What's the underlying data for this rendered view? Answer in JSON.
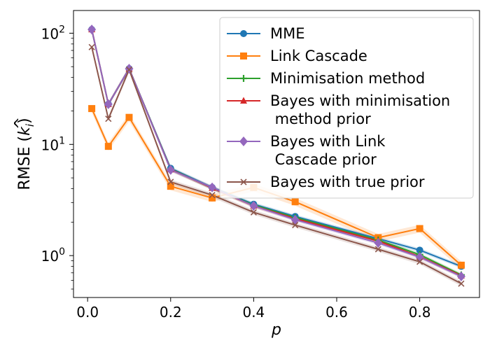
{
  "chart_data": {
    "type": "line",
    "title": "",
    "xlabel": "p",
    "ylabel": "RMSE (k̂_i)",
    "ylabel_parts": {
      "main": "RMSE (",
      "k": "k",
      "hat": "^",
      "sub": "i",
      "close": ")"
    },
    "yscale": "log",
    "xlim": [
      -0.034,
      0.944
    ],
    "ylim": [
      0.42,
      160
    ],
    "xticks": [
      0.0,
      0.2,
      0.4,
      0.6,
      0.8
    ],
    "xtick_labels": [
      "0.0",
      "0.2",
      "0.4",
      "0.6",
      "0.8"
    ],
    "yticks": [
      1,
      10,
      100
    ],
    "ytick_labels": [
      {
        "base": "10",
        "exp": "0"
      },
      {
        "base": "10",
        "exp": "1"
      },
      {
        "base": "10",
        "exp": "2"
      }
    ],
    "legend_position": "top-right",
    "x": [
      0.01,
      0.05,
      0.1,
      0.2,
      0.3,
      0.4,
      0.5,
      0.7,
      0.8,
      0.9
    ],
    "series": [
      {
        "name": "MME",
        "legend_lines": [
          "MME"
        ],
        "color": "#1f77b4",
        "marker": "circle",
        "values": [
          108,
          23,
          48,
          6.1,
          4.1,
          2.9,
          2.25,
          1.42,
          1.12,
          0.8
        ],
        "band": 0.04
      },
      {
        "name": "Link Cascade",
        "legend_lines": [
          "Link Cascade"
        ],
        "color": "#ff7f0e",
        "marker": "square",
        "values": [
          21,
          9.6,
          17.5,
          4.2,
          3.3,
          4.1,
          3.05,
          1.45,
          1.75,
          0.82
        ],
        "band": 0.08
      },
      {
        "name": "Minimisation method",
        "legend_lines": [
          "Minimisation method"
        ],
        "color": "#2ca02c",
        "marker": "plus",
        "values": [
          108,
          23,
          48,
          6.0,
          4.05,
          2.85,
          2.2,
          1.38,
          1.02,
          0.67
        ],
        "band": 0.04
      },
      {
        "name": "Bayes with minimisation method prior",
        "legend_lines": [
          "Bayes with minimisation",
          " method prior"
        ],
        "color": "#d62728",
        "marker": "triangle",
        "values": [
          108,
          23,
          48,
          5.95,
          4.05,
          2.8,
          2.15,
          1.35,
          0.98,
          0.66
        ],
        "band": 0.04
      },
      {
        "name": "Bayes with Link Cascade prior",
        "legend_lines": [
          "Bayes with Link",
          " Cascade prior"
        ],
        "color": "#9467bd",
        "marker": "diamond",
        "values": [
          108,
          23,
          48,
          5.9,
          4.1,
          2.8,
          2.1,
          1.3,
          0.97,
          0.65
        ],
        "band": 0.04
      },
      {
        "name": "Bayes with true prior",
        "legend_lines": [
          "Bayes with true prior"
        ],
        "color": "#8c564b",
        "marker": "x",
        "values": [
          75,
          17,
          47,
          4.6,
          3.5,
          2.45,
          1.88,
          1.14,
          0.88,
          0.56
        ],
        "band": 0.05
      }
    ]
  }
}
